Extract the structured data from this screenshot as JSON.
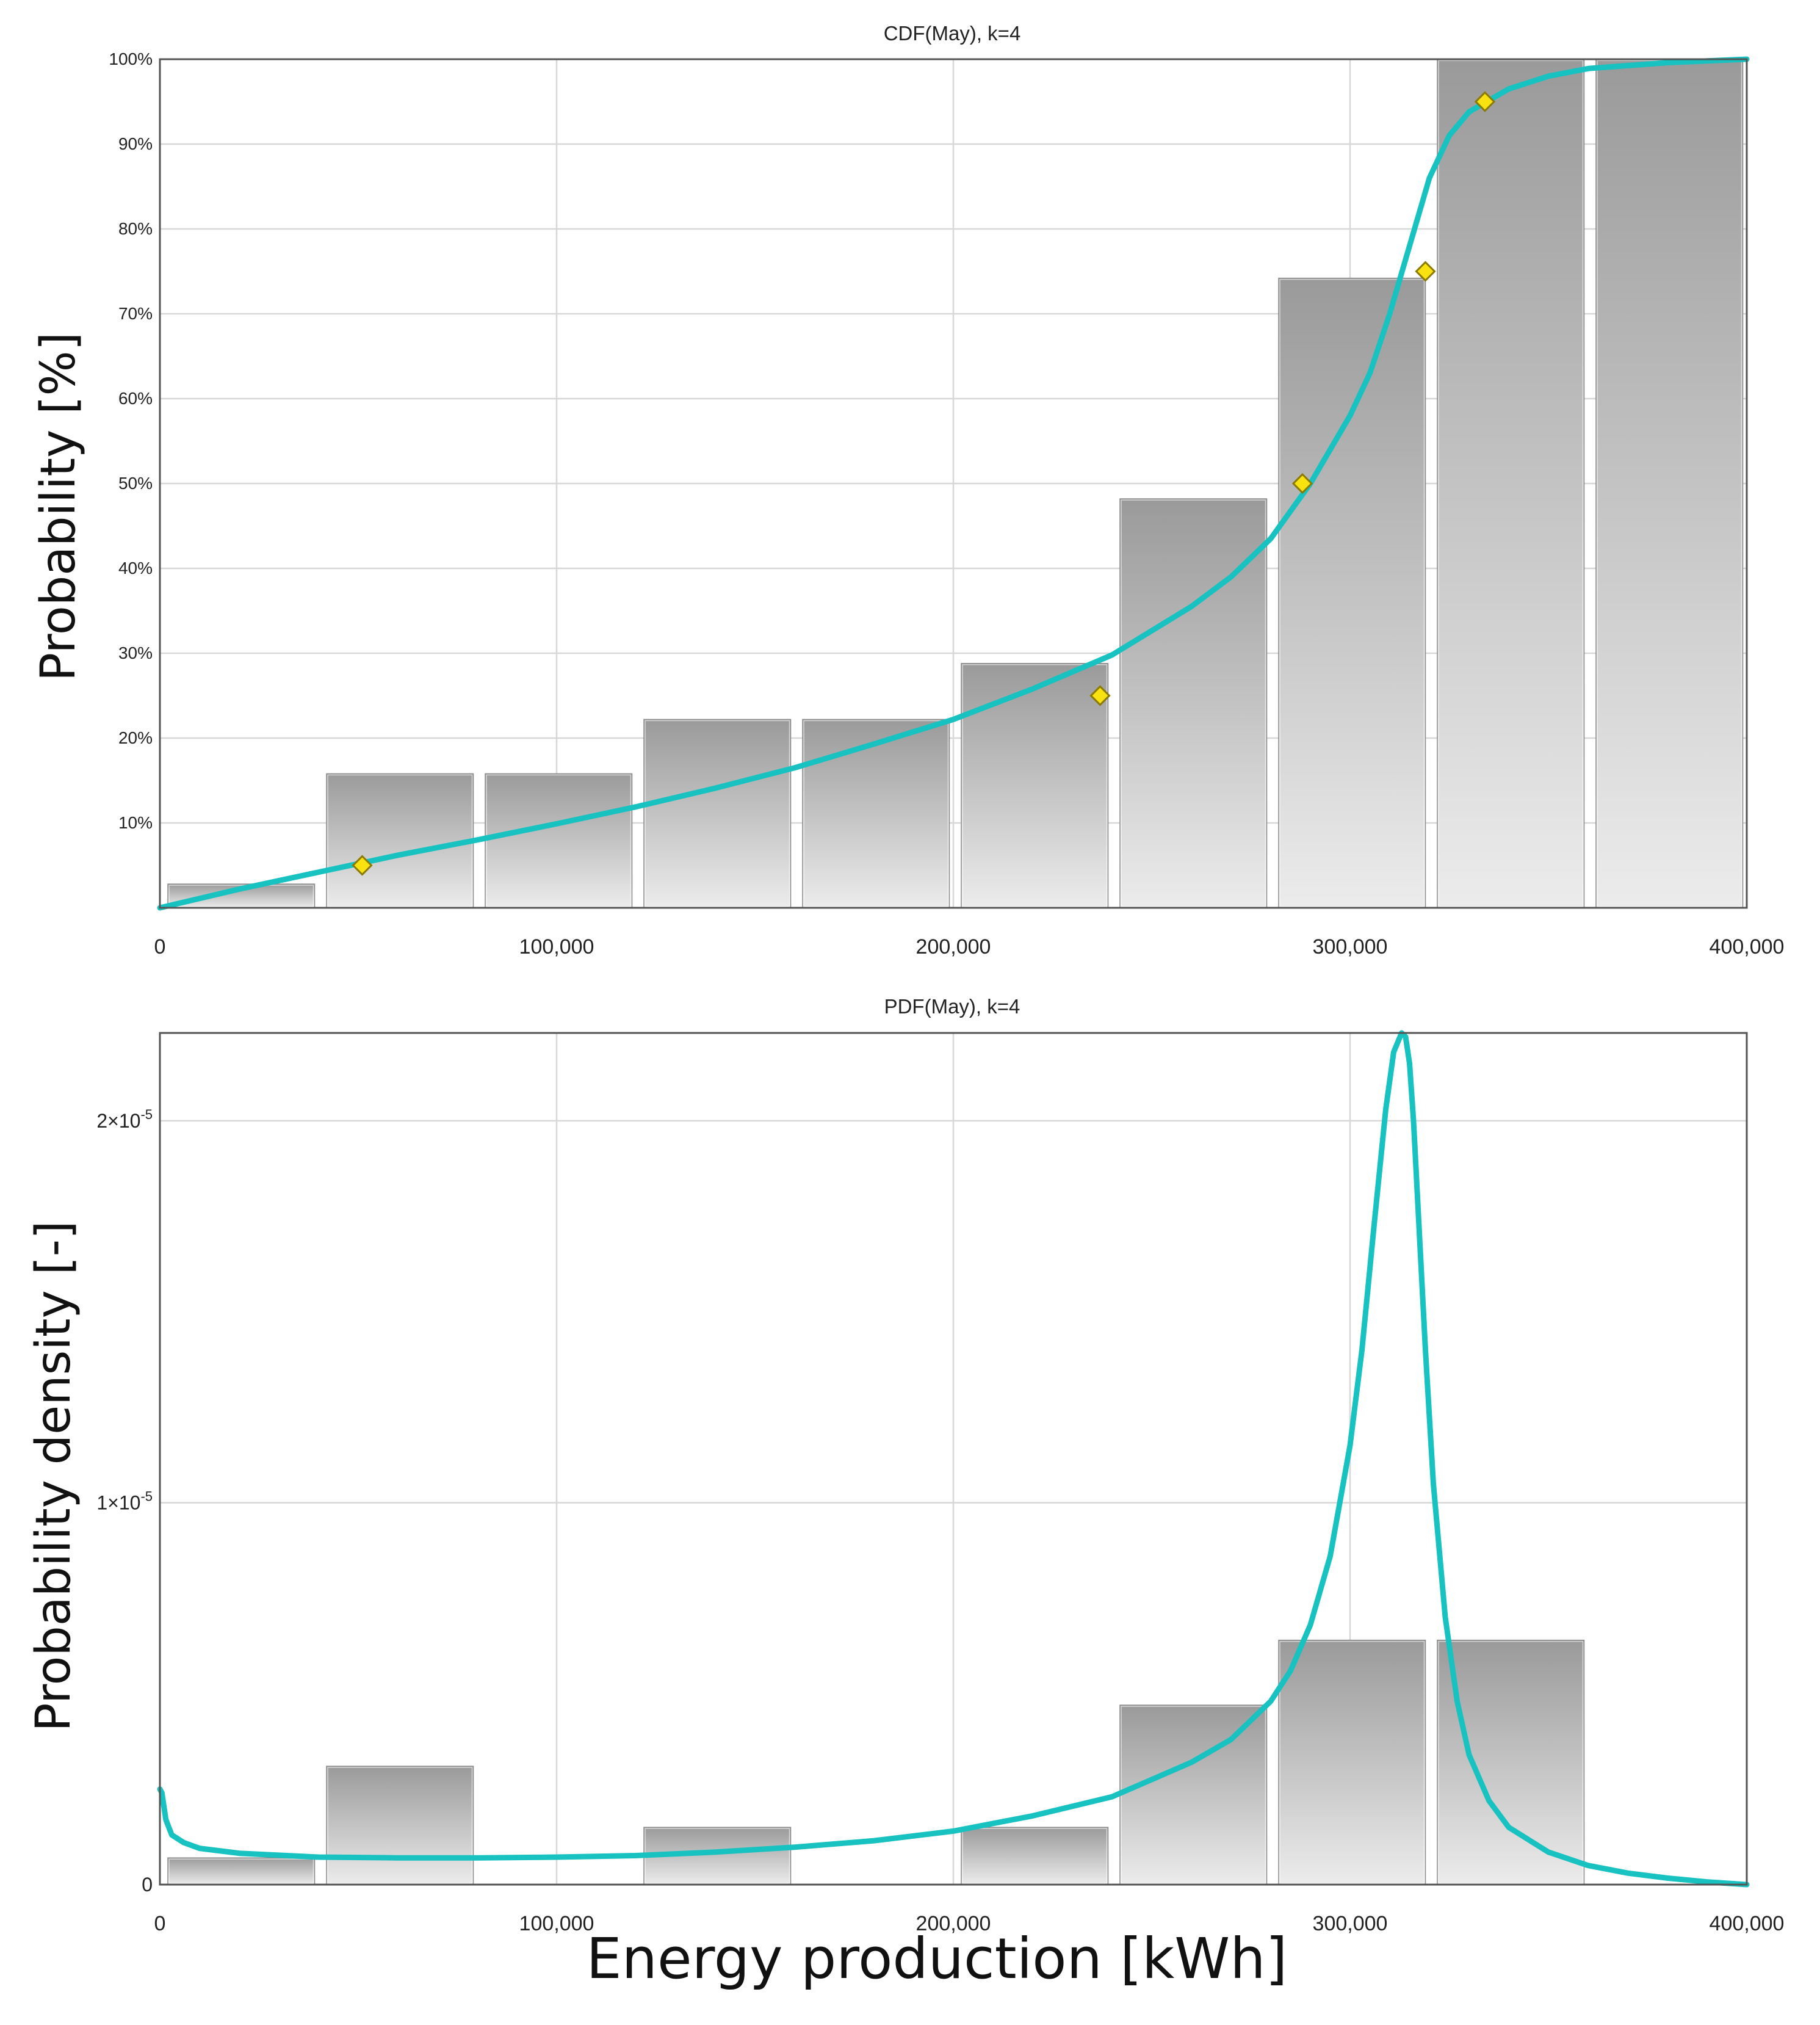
{
  "shared": {
    "xlabel": "Energy production [kWh]",
    "x_ticks": [
      0,
      100000,
      200000,
      300000,
      400000
    ],
    "x_tick_labels": [
      "0",
      "100,000",
      "200,000",
      "300,000",
      "400,000"
    ],
    "xlim": [
      0,
      400000
    ]
  },
  "colors": {
    "curve": "#17c2c0",
    "bar_top": "#9a9a9a",
    "bar_bottom": "#ececec",
    "marker_fill": "#f8e210",
    "marker_stroke": "#8a7a00",
    "grid": "#d7d7d7",
    "frame": "#555555"
  },
  "chart_data": [
    {
      "id": "cdf",
      "type": "bar",
      "title": "CDF(May), k=4",
      "ylabel": "Probability [%]",
      "xlabel": "",
      "xlim": [
        0,
        400000
      ],
      "ylim": [
        0,
        100
      ],
      "y_ticks": [
        10,
        20,
        30,
        40,
        50,
        60,
        70,
        80,
        90,
        100
      ],
      "y_tick_labels": [
        "10%",
        "20%",
        "30%",
        "40%",
        "50%",
        "60%",
        "70%",
        "80%",
        "90%",
        "100%"
      ],
      "bars": [
        {
          "x0": 2000,
          "x1": 39000,
          "value": 2.8
        },
        {
          "x0": 42000,
          "x1": 79000,
          "value": 15.8
        },
        {
          "x0": 82000,
          "x1": 119000,
          "value": 15.8
        },
        {
          "x0": 122000,
          "x1": 159000,
          "value": 22.2
        },
        {
          "x0": 162000,
          "x1": 199000,
          "value": 22.2
        },
        {
          "x0": 202000,
          "x1": 239000,
          "value": 28.8
        },
        {
          "x0": 242000,
          "x1": 279000,
          "value": 48.2
        },
        {
          "x0": 282000,
          "x1": 319000,
          "value": 74.2
        },
        {
          "x0": 322000,
          "x1": 359000,
          "value": 100
        },
        {
          "x0": 362000,
          "x1": 399000,
          "value": 100
        }
      ],
      "markers": [
        {
          "x": 51000,
          "y": 5
        },
        {
          "x": 237000,
          "y": 25
        },
        {
          "x": 288000,
          "y": 50
        },
        {
          "x": 319000,
          "y": 75
        },
        {
          "x": 334000,
          "y": 95
        }
      ],
      "curve": {
        "name": "CDF fit",
        "x": [
          0,
          20000,
          40000,
          60000,
          80000,
          100000,
          120000,
          140000,
          160000,
          180000,
          200000,
          220000,
          240000,
          260000,
          270000,
          280000,
          290000,
          300000,
          305000,
          310000,
          315000,
          320000,
          325000,
          330000,
          340000,
          350000,
          360000,
          380000,
          400000
        ],
        "y": [
          0,
          2.2,
          4.2,
          6.2,
          8.0,
          9.9,
          11.9,
          14.1,
          16.5,
          19.3,
          22.2,
          25.8,
          29.8,
          35.5,
          39.0,
          43.5,
          50.0,
          58.0,
          63.0,
          70.0,
          78.0,
          86.0,
          91.0,
          93.8,
          96.5,
          98.0,
          98.9,
          99.6,
          100
        ]
      }
    },
    {
      "id": "pdf",
      "type": "bar",
      "title": "PDF(May), k=4",
      "ylabel": "Probability density [-]",
      "xlabel": "Energy production [kWh]",
      "xlim": [
        0,
        400000
      ],
      "ylim": [
        0,
        2.23e-05
      ],
      "y_ticks": [
        0,
        1e-05,
        2e-05
      ],
      "y_tick_labels": [
        {
          "base": "0",
          "exp": ""
        },
        {
          "base": "1×10",
          "exp": "-5"
        },
        {
          "base": "2×10",
          "exp": "-5"
        }
      ],
      "bars": [
        {
          "x0": 2000,
          "x1": 39000,
          "value": 7e-07
        },
        {
          "x0": 42000,
          "x1": 79000,
          "value": 3.1e-06
        },
        {
          "x0": 122000,
          "x1": 159000,
          "value": 1.5e-06
        },
        {
          "x0": 202000,
          "x1": 239000,
          "value": 1.5e-06
        },
        {
          "x0": 242000,
          "x1": 279000,
          "value": 4.7e-06
        },
        {
          "x0": 282000,
          "x1": 319000,
          "value": 6.4e-06
        },
        {
          "x0": 322000,
          "x1": 359000,
          "value": 6.4e-06
        }
      ],
      "curve": {
        "name": "PDF fit",
        "x": [
          0,
          500,
          1500,
          3000,
          6000,
          10000,
          20000,
          40000,
          60000,
          80000,
          100000,
          120000,
          140000,
          160000,
          180000,
          200000,
          220000,
          240000,
          260000,
          270000,
          280000,
          285000,
          290000,
          295000,
          300000,
          303000,
          306000,
          309000,
          311000,
          313000,
          314000,
          315000,
          316000,
          317000,
          319000,
          321000,
          324000,
          327000,
          330000,
          335000,
          340000,
          350000,
          360000,
          370000,
          380000,
          390000,
          400000
        ],
        "y": [
          2.5e-06,
          2.4e-06,
          1.7e-06,
          1.3e-06,
          1.1e-06,
          9.5e-07,
          8.2e-07,
          7.2e-07,
          7e-07,
          7e-07,
          7.2e-07,
          7.6e-07,
          8.5e-07,
          9.8e-07,
          1.15e-06,
          1.4e-06,
          1.8e-06,
          2.3e-06,
          3.2e-06,
          3.8e-06,
          4.8e-06,
          5.6e-06,
          6.8e-06,
          8.6e-06,
          1.15e-05,
          1.4e-05,
          1.72e-05,
          2.03e-05,
          2.18e-05,
          2.23e-05,
          2.22e-05,
          2.15e-05,
          2e-05,
          1.8e-05,
          1.4e-05,
          1.05e-05,
          7e-06,
          4.8e-06,
          3.4e-06,
          2.2e-06,
          1.5e-06,
          8.5e-07,
          5e-07,
          3e-07,
          1.7e-07,
          7e-08,
          0
        ]
      }
    }
  ]
}
